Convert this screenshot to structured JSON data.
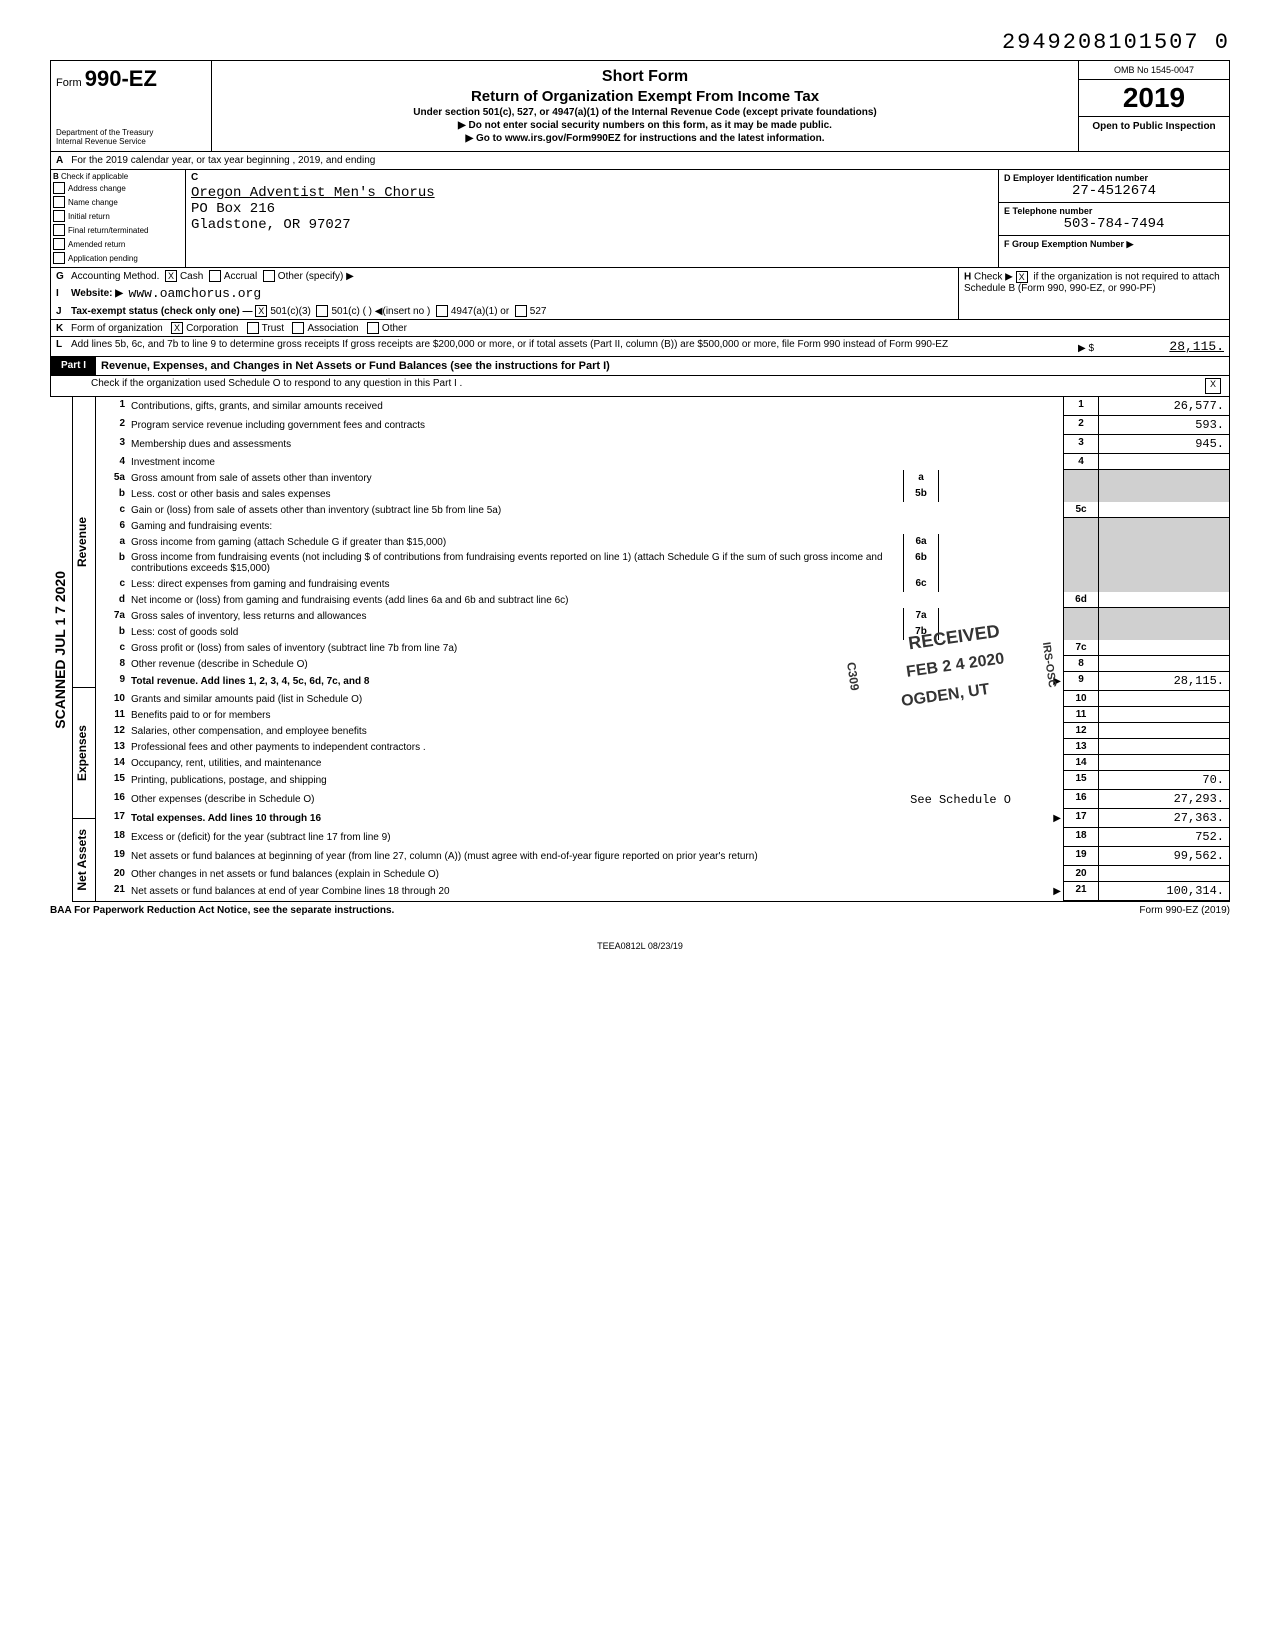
{
  "header_number": "2949208101507 0",
  "form": {
    "prefix": "Form",
    "number": "990-EZ",
    "dept": "Department of the Treasury\nInternal Revenue Service"
  },
  "title": {
    "line1": "Short Form",
    "line2": "Return of Organization Exempt From Income Tax",
    "sub1": "Under section 501(c), 527, or 4947(a)(1) of the Internal Revenue Code (except private foundations)",
    "sub2": "▶ Do not enter social security numbers on this form, as it may be made public.",
    "sub3": "▶ Go to www.irs.gov/Form990EZ for instructions and the latest information."
  },
  "year_box": {
    "omb": "OMB No 1545-0047",
    "year": "2019",
    "open": "Open to Public Inspection"
  },
  "line_a": "For the 2019 calendar year, or tax year beginning                                         , 2019, and ending",
  "col_b": {
    "header": "Check if applicable",
    "items": [
      "Address change",
      "Name change",
      "Initial return",
      "Final return/terminated",
      "Amended return",
      "Application pending"
    ]
  },
  "col_c": {
    "label": "C",
    "name": "Oregon Adventist Men's Chorus",
    "addr1": "PO Box 216",
    "addr2": "Gladstone, OR 97027"
  },
  "col_d": {
    "label": "D  Employer Identification number",
    "value": "27-4512674"
  },
  "col_e": {
    "label": "E  Telephone number",
    "value": "503-784-7494"
  },
  "col_f": {
    "label": "F  Group Exemption Number ▶",
    "value": ""
  },
  "line_g": {
    "lbl": "G",
    "text": "Accounting Method.",
    "cash": "Cash",
    "accrual": "Accrual",
    "other": "Other (specify) ▶"
  },
  "line_h": {
    "lbl": "H",
    "text": "Check ▶",
    "note": "if the organization is not required to attach Schedule B (Form 990, 990-EZ, or 990-PF)"
  },
  "line_i": {
    "lbl": "I",
    "text": "Website: ▶",
    "value": "www.oamchorus.org"
  },
  "line_j": {
    "lbl": "J",
    "text": "Tax-exempt status (check only one) —",
    "opts": [
      "501(c)(3)",
      "501(c) (       ) ◀(insert no )",
      "4947(a)(1) or",
      "527"
    ]
  },
  "line_k": {
    "lbl": "K",
    "text": "Form of organization",
    "opts": [
      "Corporation",
      "Trust",
      "Association",
      "Other"
    ]
  },
  "line_l": {
    "lbl": "L",
    "text": "Add lines 5b, 6c, and 7b to line 9 to determine gross receipts  If gross receipts are $200,000 or more, or if total assets (Part II, column (B)) are $500,000 or more, file Form 990 instead of Form 990-EZ",
    "arrow": "▶ $",
    "value": "28,115."
  },
  "part1": {
    "label": "Part I",
    "title": "Revenue, Expenses, and Changes in Net Assets or Fund Balances (see the instructions for Part I)",
    "check_line": "Check if the organization used Schedule O to respond to any question in this Part I ."
  },
  "sections": {
    "scanned": "SCANNED JUL 1 7 2020",
    "revenue": "Revenue",
    "expenses": "Expenses",
    "netassets": "Net Assets"
  },
  "rows": [
    {
      "n": "1",
      "desc": "Contributions, gifts, grants, and similar amounts received",
      "rn": "1",
      "rv": "26,577."
    },
    {
      "n": "2",
      "desc": "Program service revenue including government fees and contracts",
      "rn": "2",
      "rv": "593."
    },
    {
      "n": "3",
      "desc": "Membership dues and assessments",
      "rn": "3",
      "rv": "945."
    },
    {
      "n": "4",
      "desc": "Investment income",
      "rn": "4",
      "rv": ""
    },
    {
      "n": "5a",
      "desc": "Gross amount from sale of assets other than inventory",
      "mn": "a",
      "shaded": true
    },
    {
      "n": "b",
      "desc": "Less. cost or other basis and sales expenses",
      "mn": "5b",
      "shaded": true
    },
    {
      "n": "c",
      "desc": "Gain or (loss) from sale of assets other than inventory (subtract line 5b from line 5a)",
      "rn": "5c",
      "rv": ""
    },
    {
      "n": "6",
      "desc": "Gaming and fundraising events:",
      "shaded": true
    },
    {
      "n": "a",
      "desc": "Gross income from gaming (attach Schedule G if greater than $15,000)",
      "mn": "6a",
      "shaded": true
    },
    {
      "n": "b",
      "desc": "Gross income from fundraising events (not including  $                          of contributions from fundraising events reported on line 1) (attach Schedule G if the sum of such gross income and contributions exceeds $15,000)",
      "mn": "6b",
      "shaded": true
    },
    {
      "n": "c",
      "desc": "Less: direct expenses from gaming and fundraising events",
      "mn": "6c",
      "shaded": true
    },
    {
      "n": "d",
      "desc": "Net income or (loss) from gaming and fundraising events (add lines 6a and 6b and subtract line 6c)",
      "rn": "6d",
      "rv": ""
    },
    {
      "n": "7a",
      "desc": "Gross sales of inventory, less returns and allowances",
      "mn": "7a",
      "shaded": true
    },
    {
      "n": "b",
      "desc": "Less: cost of goods sold",
      "mn": "7b",
      "shaded": true
    },
    {
      "n": "c",
      "desc": "Gross profit or (loss) from sales of inventory (subtract line 7b from line 7a)",
      "rn": "7c",
      "rv": ""
    },
    {
      "n": "8",
      "desc": "Other revenue (describe in Schedule O)",
      "rn": "8",
      "rv": ""
    },
    {
      "n": "9",
      "desc": "Total revenue. Add lines 1, 2, 3, 4, 5c, 6d, 7c, and 8",
      "rn": "9",
      "rv": "28,115.",
      "bold": true,
      "arrow": true
    },
    {
      "n": "10",
      "desc": "Grants and similar amounts paid (list in Schedule O)",
      "rn": "10",
      "rv": ""
    },
    {
      "n": "11",
      "desc": "Benefits paid to or for members",
      "rn": "11",
      "rv": ""
    },
    {
      "n": "12",
      "desc": "Salaries, other compensation, and employee benefits",
      "rn": "12",
      "rv": ""
    },
    {
      "n": "13",
      "desc": "Professional fees and other payments to independent contractors .",
      "rn": "13",
      "rv": ""
    },
    {
      "n": "14",
      "desc": "Occupancy, rent, utilities, and maintenance",
      "rn": "14",
      "rv": ""
    },
    {
      "n": "15",
      "desc": "Printing, publications, postage, and shipping",
      "rn": "15",
      "rv": "70."
    },
    {
      "n": "16",
      "desc": "Other expenses (describe in Schedule O)",
      "extra": "See Schedule O",
      "rn": "16",
      "rv": "27,293."
    },
    {
      "n": "17",
      "desc": "Total expenses. Add lines 10 through 16",
      "rn": "17",
      "rv": "27,363.",
      "bold": true,
      "arrow": true
    },
    {
      "n": "18",
      "desc": "Excess or (deficit) for the year (subtract line 17 from line 9)",
      "rn": "18",
      "rv": "752."
    },
    {
      "n": "19",
      "desc": "Net assets or fund balances at beginning of year (from line 27, column (A)) (must agree with end-of-year figure reported on prior year's return)",
      "rn": "19",
      "rv": "99,562."
    },
    {
      "n": "20",
      "desc": "Other changes in net assets or fund balances (explain in Schedule O)",
      "rn": "20",
      "rv": ""
    },
    {
      "n": "21",
      "desc": "Net assets or fund balances at end of year  Combine lines 18 through 20",
      "rn": "21",
      "rv": "100,314.",
      "arrow": true
    }
  ],
  "stamps": {
    "received": "RECEIVED",
    "date": "FEB 2 4 2020",
    "ogden": "OGDEN, UT",
    "side1": "C309",
    "side2": "IRS-OSC"
  },
  "footer": {
    "left": "BAA  For Paperwork Reduction Act Notice, see the separate instructions.",
    "mid": "TEEA0812L   08/23/19",
    "right": "Form 990-EZ (2019)"
  }
}
